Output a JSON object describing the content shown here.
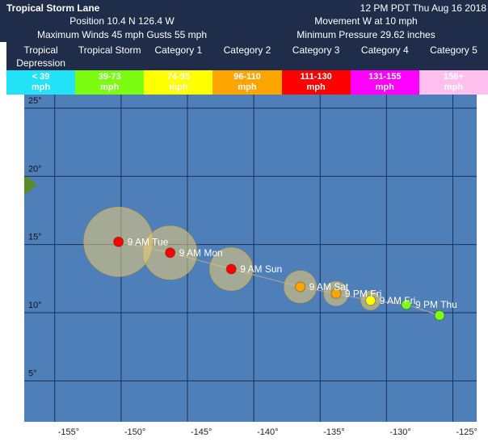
{
  "header": {
    "title": "Tropical Storm Lane",
    "time": "12 PM PDT Thu Aug 16 2018",
    "position": "Position 10.4 N 126.4 W",
    "movement": "Movement W at 10 mph",
    "winds": "Maximum Winds 45 mph Gusts 55 mph",
    "pressure": "Minimum Pressure 29.62 inches"
  },
  "legend": [
    {
      "label": "Tropical Depression",
      "range": "< 39",
      "unit": "mph",
      "color": "#22e3f7"
    },
    {
      "label": "Tropical Storm",
      "range": "39-73",
      "unit": "mph",
      "color": "#7cfc10"
    },
    {
      "label": "Category 1",
      "range": "74-95",
      "unit": "mph",
      "color": "#ffff00"
    },
    {
      "label": "Category 2",
      "range": "96-110",
      "unit": "mph",
      "color": "#ffa500"
    },
    {
      "label": "Category 3",
      "range": "111-130",
      "unit": "mph",
      "color": "#ff0000"
    },
    {
      "label": "Category 4",
      "range": "131-155",
      "unit": "mph",
      "color": "#ff00ff"
    },
    {
      "label": "Category 5",
      "range": "156+",
      "unit": "mph",
      "color": "#ffc0f0"
    }
  ],
  "map": {
    "xlim": [
      -157.3,
      -123.2
    ],
    "ylim": [
      2,
      26
    ],
    "xticks": [
      {
        "value": -155,
        "label": "-155°"
      },
      {
        "value": -150,
        "label": "-150°"
      },
      {
        "value": -145,
        "label": "-145°"
      },
      {
        "value": -140,
        "label": "-140°"
      },
      {
        "value": -135,
        "label": "-135°"
      },
      {
        "value": -130,
        "label": "-130°"
      },
      {
        "value": -125,
        "label": "-125°"
      }
    ],
    "yticks": [
      {
        "value": 25,
        "label": "25°"
      },
      {
        "value": 20,
        "label": "20°"
      },
      {
        "value": 15,
        "label": "15°"
      },
      {
        "value": 10,
        "label": "10°"
      },
      {
        "value": 5,
        "label": "5°"
      }
    ],
    "points": [
      {
        "label": null,
        "lon": -126.0,
        "lat": 9.8,
        "category": 1,
        "radius": null
      },
      {
        "label": "9 PM Thu",
        "lon": -128.5,
        "lat": 10.6,
        "category": 1,
        "radius": null
      },
      {
        "label": "9 AM Fri",
        "lon": -131.2,
        "lat": 10.9,
        "category": 2,
        "radius": 0.7
      },
      {
        "label": "9 PM Fri",
        "lon": -133.8,
        "lat": 11.4,
        "category": 3,
        "radius": 0.9
      },
      {
        "label": "9 AM Sat",
        "lon": -136.5,
        "lat": 11.9,
        "category": 3,
        "radius": 1.2
      },
      {
        "label": "9 AM Sun",
        "lon": -141.7,
        "lat": 13.2,
        "category": 4,
        "radius": 1.6
      },
      {
        "label": "9 AM Mon",
        "lon": -146.3,
        "lat": 14.4,
        "category": 4,
        "radius": 2.0
      },
      {
        "label": "9 AM Tue",
        "lon": -150.2,
        "lat": 15.2,
        "category": 4,
        "radius": 2.6
      }
    ]
  }
}
